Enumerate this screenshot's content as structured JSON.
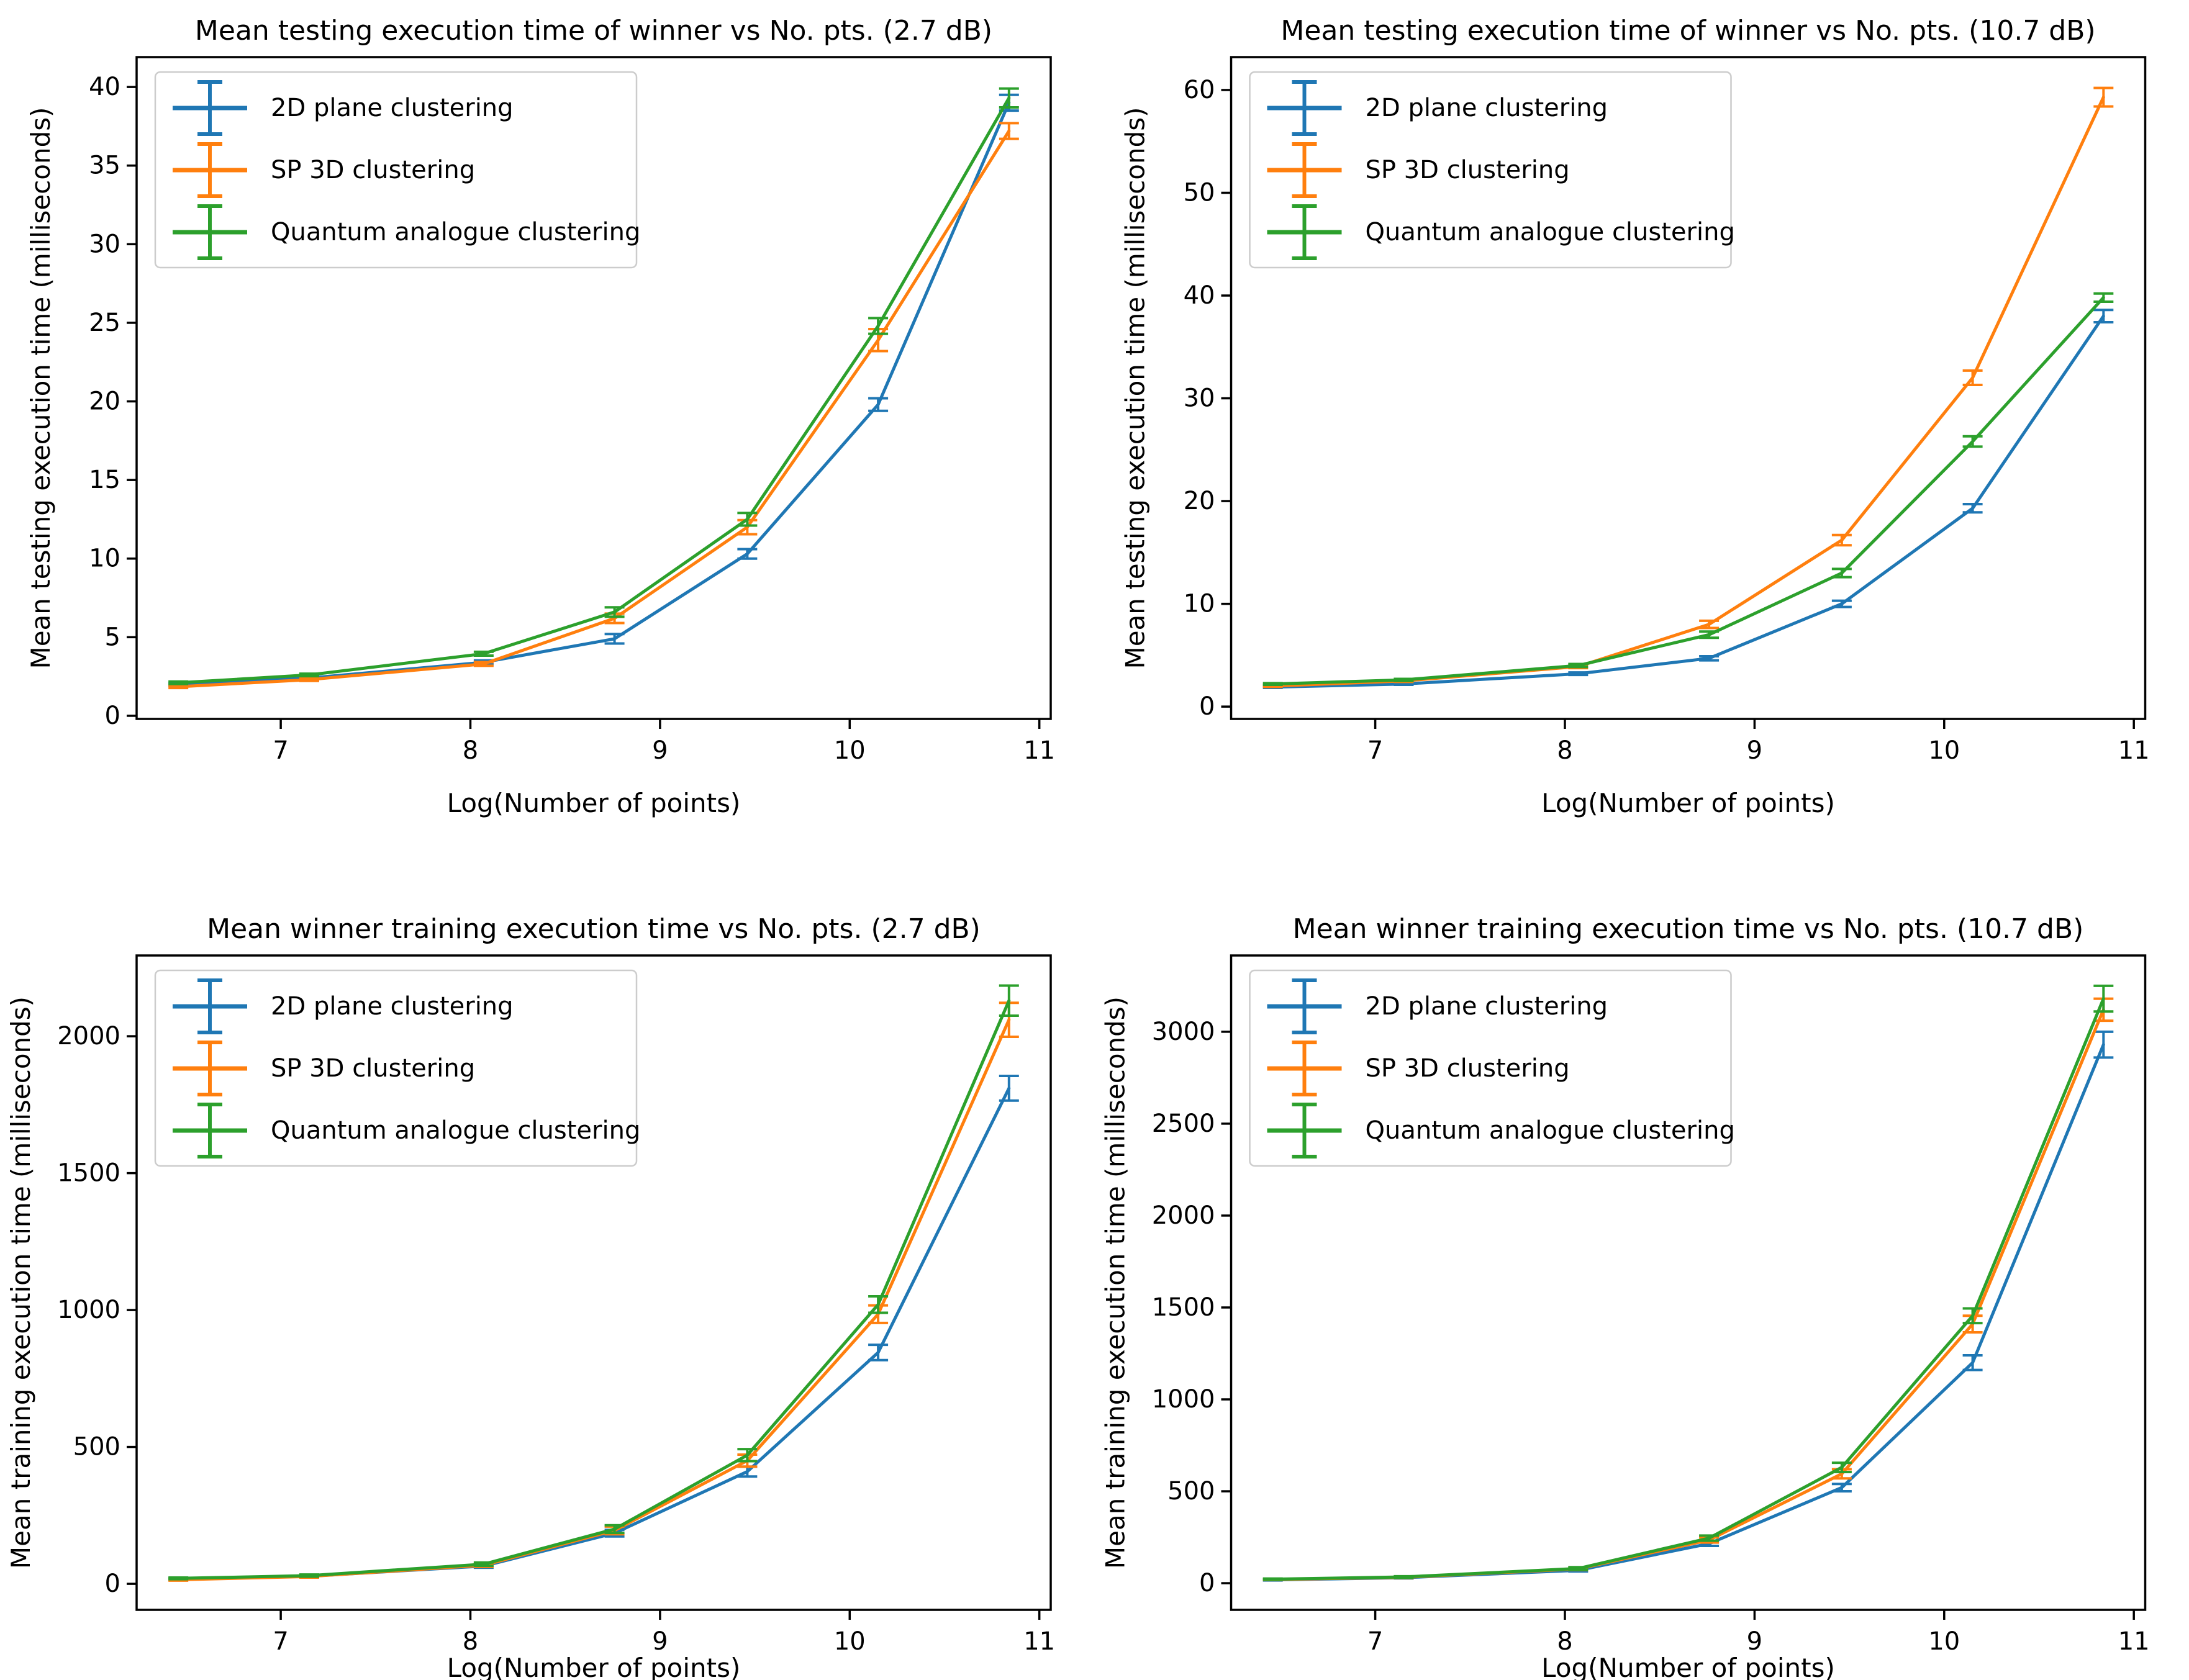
{
  "page": {
    "background": "#ffffff",
    "figure_kind": "matplotlib 2x2 subplot grid of errorbar line charts"
  },
  "palette": {
    "blue": "#1f77b4",
    "orange": "#ff7f0e",
    "green": "#2ca02c",
    "axis": "#000000",
    "legend_border": "#cccccc",
    "legend_fill": "#ffffff"
  },
  "chart_data": [
    {
      "type": "line",
      "title": "Mean testing execution time of winner vs No. pts. (2.7 dB)",
      "xlabel": "Log(Number of points)",
      "ylabel": "Mean testing execution time (milliseconds)",
      "grid": false,
      "legend_position": "upper left",
      "error_bars": true,
      "x": [
        6.46,
        7.15,
        8.07,
        8.76,
        9.46,
        10.15,
        10.84
      ],
      "xlim": [
        6.24,
        11.06
      ],
      "ylim": [
        -0.2,
        41.9
      ],
      "xticks": [
        7,
        8,
        9,
        10,
        11
      ],
      "yticks": [
        0,
        5,
        10,
        15,
        20,
        25,
        30,
        35,
        40
      ],
      "series": [
        {
          "name": "2D plane clustering",
          "color": "#1f77b4",
          "values": [
            2.0,
            2.4,
            3.4,
            4.9,
            10.3,
            19.8,
            39.0
          ],
          "yerr": [
            0.08,
            0.08,
            0.12,
            0.3,
            0.3,
            0.4,
            0.5
          ]
        },
        {
          "name": "SP 3D clustering",
          "color": "#ff7f0e",
          "values": [
            1.85,
            2.3,
            3.3,
            6.2,
            12.0,
            23.9,
            37.2
          ],
          "yerr": [
            0.08,
            0.08,
            0.12,
            0.3,
            0.45,
            0.7,
            0.5
          ]
        },
        {
          "name": "Quantum analogue clustering",
          "color": "#2ca02c",
          "values": [
            2.1,
            2.6,
            3.95,
            6.6,
            12.5,
            24.8,
            39.3
          ],
          "yerr": [
            0.08,
            0.08,
            0.12,
            0.3,
            0.4,
            0.5,
            0.6
          ]
        }
      ]
    },
    {
      "type": "line",
      "title": "Mean testing execution time of winner vs No. pts. (10.7 dB)",
      "xlabel": "Log(Number of points)",
      "ylabel": "Mean testing execution time (milliseconds)",
      "grid": false,
      "legend_position": "upper left",
      "error_bars": true,
      "x": [
        6.46,
        7.15,
        8.07,
        8.76,
        9.46,
        10.15,
        10.84
      ],
      "xlim": [
        6.24,
        11.06
      ],
      "ylim": [
        -1.2,
        63.2
      ],
      "xticks": [
        7,
        8,
        9,
        10,
        11
      ],
      "yticks": [
        0,
        10,
        20,
        30,
        40,
        50,
        60
      ],
      "series": [
        {
          "name": "2D plane clustering",
          "color": "#1f77b4",
          "values": [
            1.9,
            2.2,
            3.2,
            4.7,
            10.0,
            19.3,
            38.0
          ],
          "yerr": [
            0.08,
            0.08,
            0.12,
            0.2,
            0.3,
            0.4,
            0.6
          ]
        },
        {
          "name": "SP 3D clustering",
          "color": "#ff7f0e",
          "values": [
            2.0,
            2.5,
            3.9,
            8.0,
            16.2,
            32.0,
            59.3
          ],
          "yerr": [
            0.08,
            0.1,
            0.15,
            0.35,
            0.5,
            0.7,
            0.9
          ]
        },
        {
          "name": "Quantum analogue clustering",
          "color": "#2ca02c",
          "values": [
            2.2,
            2.6,
            4.0,
            7.0,
            13.0,
            25.8,
            39.8
          ],
          "yerr": [
            0.08,
            0.1,
            0.15,
            0.3,
            0.4,
            0.5,
            0.4
          ]
        }
      ]
    },
    {
      "type": "line",
      "title": "Mean winner training execution time vs No. pts. (2.7 dB)",
      "xlabel": "Log(Number of points)",
      "ylabel": "Mean training execution time (milliseconds)",
      "grid": false,
      "legend_position": "upper left",
      "error_bars": true,
      "x": [
        6.46,
        7.15,
        8.07,
        8.76,
        9.46,
        10.15,
        10.84
      ],
      "xlim": [
        6.24,
        11.06
      ],
      "ylim": [
        -95,
        2295
      ],
      "xticks": [
        7,
        8,
        9,
        10,
        11
      ],
      "yticks": [
        0,
        500,
        1000,
        1500,
        2000
      ],
      "series": [
        {
          "name": "2D plane clustering",
          "color": "#1f77b4",
          "values": [
            18,
            28,
            65,
            185,
            410,
            845,
            1810
          ],
          "yerr": [
            3,
            3,
            6,
            12,
            18,
            28,
            45
          ]
        },
        {
          "name": "SP 3D clustering",
          "color": "#ff7f0e",
          "values": [
            15,
            27,
            68,
            195,
            450,
            985,
            2060
          ],
          "yerr": [
            3,
            4,
            6,
            14,
            22,
            32,
            62
          ]
        },
        {
          "name": "Quantum analogue clustering",
          "color": "#2ca02c",
          "values": [
            20,
            30,
            72,
            200,
            470,
            1020,
            2130
          ],
          "yerr": [
            3,
            4,
            6,
            14,
            22,
            30,
            55
          ]
        }
      ]
    },
    {
      "type": "line",
      "title": "Mean winner training execution time vs No. pts. (10.7 dB)",
      "xlabel": "Log(Number of points)",
      "ylabel": "Mean training execution time (milliseconds)",
      "grid": false,
      "legend_position": "upper left",
      "error_bars": true,
      "x": [
        6.46,
        7.15,
        8.07,
        8.76,
        9.46,
        10.15,
        10.84
      ],
      "xlim": [
        6.24,
        11.06
      ],
      "ylim": [
        -145,
        3415
      ],
      "xticks": [
        7,
        8,
        9,
        10,
        11
      ],
      "yticks": [
        0,
        500,
        1000,
        1500,
        2000,
        2500,
        3000
      ],
      "series": [
        {
          "name": "2D plane clustering",
          "color": "#1f77b4",
          "values": [
            18,
            30,
            70,
            215,
            520,
            1200,
            2930
          ],
          "yerr": [
            3,
            4,
            6,
            12,
            20,
            40,
            70
          ]
        },
        {
          "name": "SP 3D clustering",
          "color": "#ff7f0e",
          "values": [
            20,
            32,
            78,
            235,
            595,
            1410,
            3120
          ],
          "yerr": [
            3,
            4,
            7,
            14,
            25,
            45,
            60
          ]
        },
        {
          "name": "Quantum analogue clustering",
          "color": "#2ca02c",
          "values": [
            22,
            34,
            80,
            245,
            630,
            1455,
            3180
          ],
          "yerr": [
            3,
            4,
            7,
            14,
            25,
            40,
            70
          ]
        }
      ]
    }
  ]
}
